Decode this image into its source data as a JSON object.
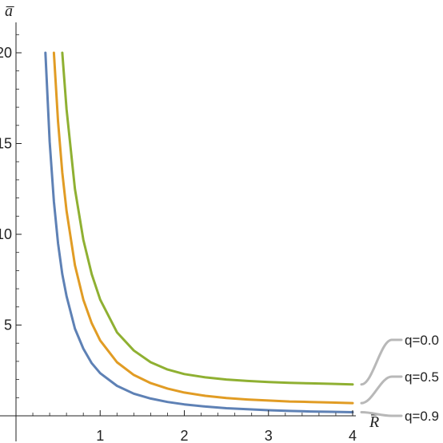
{
  "chart_data": {
    "type": "line",
    "title": "",
    "xlabel": "R̅",
    "ylabel": "a̅",
    "xlim": [
      0,
      4
    ],
    "ylim": [
      0,
      21
    ],
    "xticks": [
      1,
      2,
      3,
      4
    ],
    "yticks": [
      5,
      10,
      15,
      20
    ],
    "grid": false,
    "legend_placement": "right, beside curve ends",
    "x": [
      0.3,
      0.35,
      0.4,
      0.45,
      0.5,
      0.55,
      0.6,
      0.7,
      0.8,
      0.9,
      1.0,
      1.2,
      1.4,
      1.6,
      1.8,
      2.0,
      2.25,
      2.5,
      2.75,
      3.0,
      3.25,
      3.5,
      3.75,
      4.0
    ],
    "series": [
      {
        "name": "q=0.9",
        "color": "#5E81B5",
        "values": [
          null,
          20.0,
          15.1,
          11.8,
          9.5,
          7.8,
          6.6,
          4.8,
          3.7,
          2.9,
          2.35,
          1.65,
          1.22,
          0.95,
          0.76,
          0.63,
          0.51,
          0.42,
          0.36,
          0.31,
          0.27,
          0.24,
          0.22,
          0.2
        ]
      },
      {
        "name": "q=0.5",
        "color": "#E19C24",
        "values": [
          null,
          null,
          null,
          20.0,
          16.2,
          13.4,
          11.3,
          8.3,
          6.4,
          5.1,
          4.15,
          2.95,
          2.25,
          1.8,
          1.5,
          1.28,
          1.1,
          0.98,
          0.9,
          0.84,
          0.79,
          0.76,
          0.73,
          0.7
        ]
      },
      {
        "name": "q=0.0",
        "color": "#8FB032",
        "values": [
          null,
          null,
          null,
          null,
          null,
          20.0,
          16.9,
          12.5,
          9.7,
          7.8,
          6.4,
          4.6,
          3.6,
          2.95,
          2.55,
          2.3,
          2.12,
          2.0,
          1.92,
          1.86,
          1.82,
          1.79,
          1.76,
          1.73
        ]
      }
    ]
  },
  "legend": {
    "labels": [
      "q=0.0",
      "q=0.5",
      "q=0.9"
    ],
    "connector_color": "#B8B8B8"
  }
}
